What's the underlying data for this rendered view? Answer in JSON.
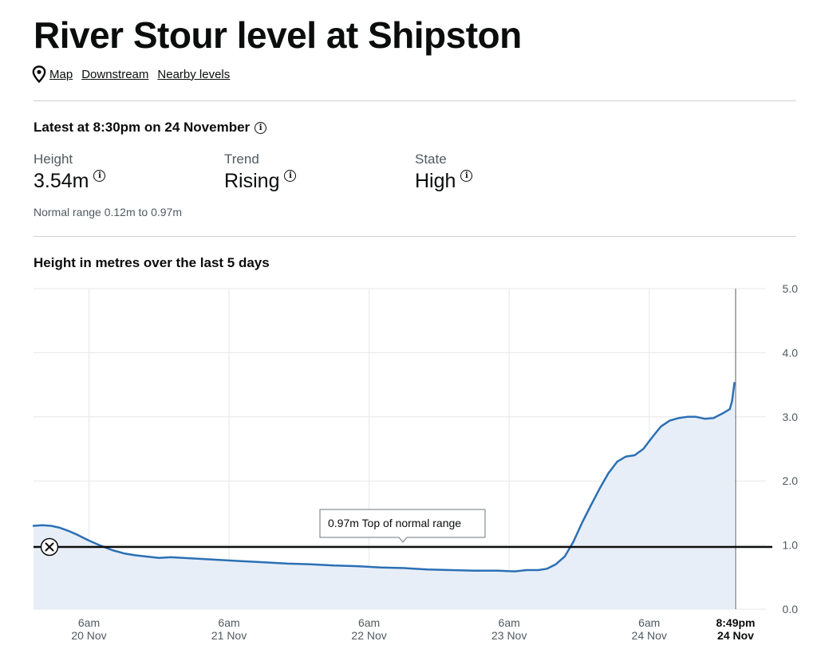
{
  "page": {
    "title": "River Stour level at Shipston",
    "links": [
      "Map",
      "Downstream",
      "Nearby levels"
    ]
  },
  "icons": {
    "location": "location-pin-icon",
    "info": "info-icon",
    "remove": "close-icon"
  },
  "latest": {
    "heading": "Latest at 8:30pm on 24 November",
    "height": {
      "label": "Height",
      "value": "3.54m"
    },
    "trend": {
      "label": "Trend",
      "value": "Rising"
    },
    "state": {
      "label": "State",
      "value": "High"
    },
    "normal_range": "Normal range 0.12m to 0.97m"
  },
  "chart_data": {
    "type": "area",
    "title": "Height in metres over the last 5 days",
    "x_unit": "hours from 00:00 20 Nov",
    "x_range": [
      -3.5,
      116.8
    ],
    "ylim": [
      0,
      5
    ],
    "yticks": [
      "0.0",
      "1.0",
      "2.0",
      "3.0",
      "4.0",
      "5.0"
    ],
    "ytick_values": [
      0,
      1,
      2,
      3,
      4,
      5
    ],
    "xticks": [
      {
        "x": 6,
        "time": "6am",
        "date": "20 Nov"
      },
      {
        "x": 30,
        "time": "6am",
        "date": "21 Nov"
      },
      {
        "x": 54,
        "time": "6am",
        "date": "22 Nov"
      },
      {
        "x": 78,
        "time": "6am",
        "date": "23 Nov"
      },
      {
        "x": 102,
        "time": "6am",
        "date": "24 Nov"
      },
      {
        "x": 116.8,
        "time": "8:49pm",
        "date": "24 Nov",
        "current": true
      }
    ],
    "threshold": {
      "value": 0.97,
      "label": "0.97m Top of normal range"
    },
    "series": [
      {
        "x": [
          -3.5,
          -2,
          -0.5,
          1,
          2.5,
          4,
          6,
          8,
          10,
          12,
          14,
          16,
          18,
          20,
          24,
          28,
          32,
          36,
          40,
          44,
          48,
          52,
          56,
          60,
          64,
          68,
          72,
          76,
          79,
          81,
          83,
          84.5,
          86,
          87.5,
          89,
          90.5,
          92,
          93.5,
          95,
          96.5,
          98,
          99.5,
          101,
          102.5,
          104,
          105.5,
          107,
          108.5,
          110,
          111.5,
          113,
          114.5,
          115.8,
          116.2,
          116.6
        ],
        "y": [
          1.3,
          1.31,
          1.3,
          1.27,
          1.22,
          1.16,
          1.07,
          0.99,
          0.92,
          0.87,
          0.84,
          0.82,
          0.8,
          0.81,
          0.79,
          0.77,
          0.75,
          0.73,
          0.71,
          0.7,
          0.68,
          0.67,
          0.65,
          0.64,
          0.62,
          0.61,
          0.6,
          0.6,
          0.59,
          0.61,
          0.61,
          0.63,
          0.7,
          0.82,
          1.05,
          1.35,
          1.62,
          1.88,
          2.12,
          2.3,
          2.38,
          2.4,
          2.5,
          2.68,
          2.85,
          2.94,
          2.98,
          3.0,
          3.0,
          2.97,
          2.98,
          3.05,
          3.12,
          3.25,
          3.53
        ]
      }
    ]
  }
}
